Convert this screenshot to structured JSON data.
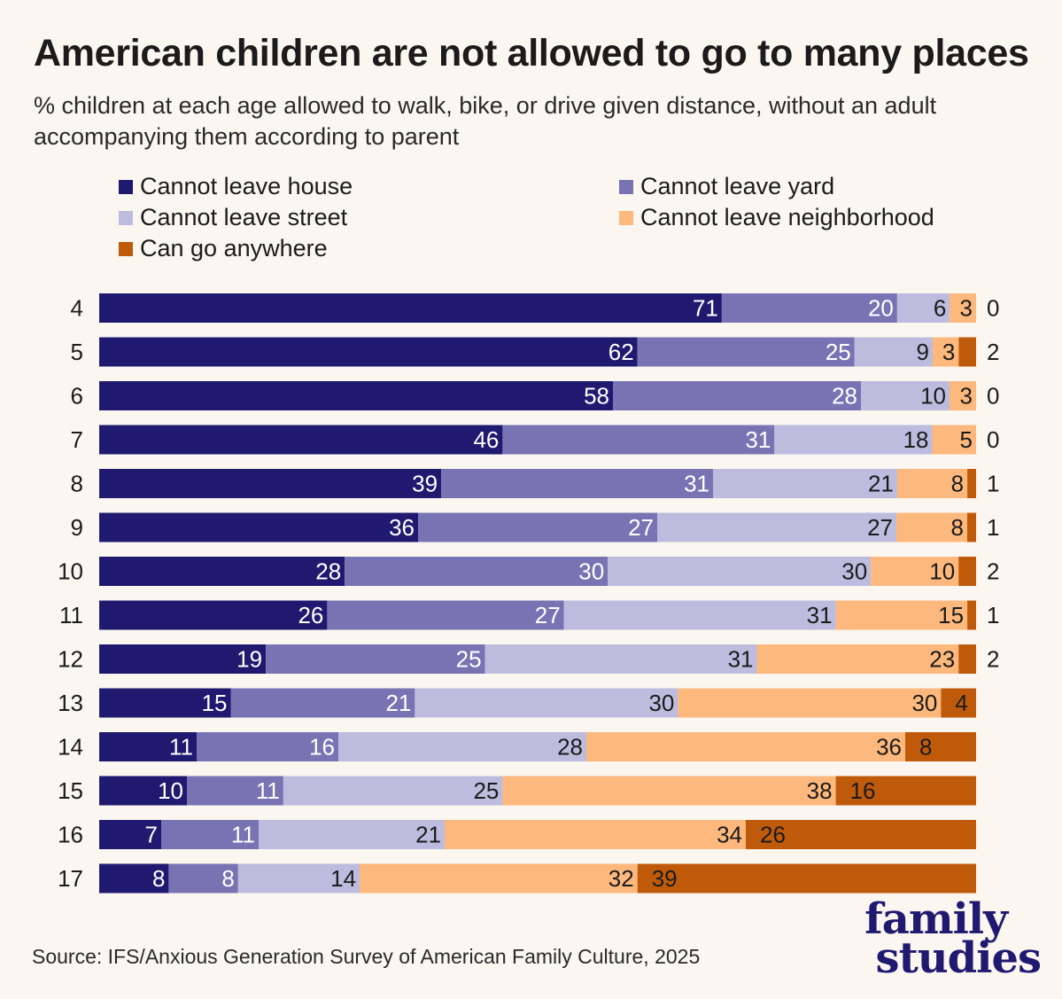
{
  "title": "American children are not allowed to go to many places",
  "subtitle": "% children at each age allowed to walk, bike, or drive given distance, without an adult accompanying them according to parent",
  "source": "Source: IFS/Anxious Generation Survey of American Family Culture, 2025",
  "logo": {
    "line1": "family",
    "line2": "studies"
  },
  "chart_data": {
    "type": "bar",
    "orientation": "horizontal",
    "stacked": true,
    "legend_position": "top",
    "grid": false,
    "xlim": [
      0,
      100
    ],
    "categories": [
      "4",
      "5",
      "6",
      "7",
      "8",
      "9",
      "10",
      "11",
      "12",
      "13",
      "14",
      "15",
      "16",
      "17"
    ],
    "series": [
      {
        "name": "Cannot leave house",
        "color": "#1f1a70",
        "label_color": "#ffffff",
        "values": [
          71,
          62,
          58,
          46,
          39,
          36,
          28,
          26,
          19,
          15,
          11,
          10,
          7,
          8
        ]
      },
      {
        "name": "Cannot leave yard",
        "color": "#7874b4",
        "label_color": "#ffffff",
        "values": [
          20,
          25,
          28,
          31,
          31,
          27,
          30,
          27,
          25,
          21,
          16,
          11,
          11,
          8
        ]
      },
      {
        "name": "Cannot leave street",
        "color": "#bdbcde",
        "label_color": "#1b1b1b",
        "values": [
          6,
          9,
          10,
          18,
          21,
          27,
          30,
          31,
          31,
          30,
          28,
          25,
          21,
          14
        ]
      },
      {
        "name": "Cannot leave neighborhood",
        "color": "#fdb87d",
        "label_color": "#1b1b1b",
        "values": [
          3,
          3,
          3,
          5,
          8,
          8,
          10,
          15,
          23,
          30,
          36,
          38,
          34,
          32
        ]
      },
      {
        "name": "Can go anywhere",
        "color": "#c05a0b",
        "label_color": "#1b1b1b",
        "values": [
          0,
          2,
          0,
          0,
          1,
          1,
          2,
          1,
          2,
          4,
          8,
          16,
          26,
          39
        ]
      }
    ]
  }
}
